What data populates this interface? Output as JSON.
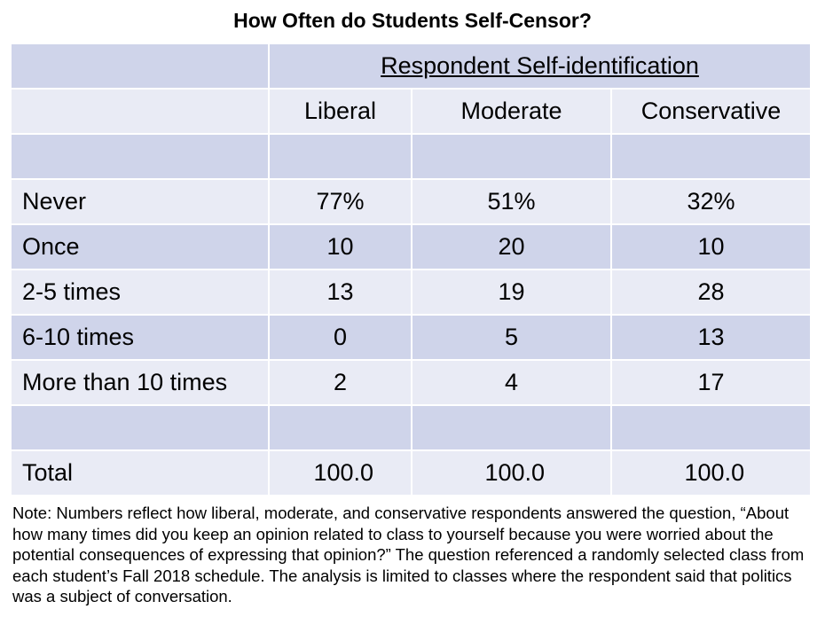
{
  "title": "How Often do Students Self-Censor?",
  "table": {
    "group_header": "Respondent Self-identification",
    "columns": [
      "Liberal",
      "Moderate",
      "Conservative"
    ],
    "rows": [
      {
        "label": "Never",
        "values": [
          "77%",
          "51%",
          "32%"
        ]
      },
      {
        "label": "Once",
        "values": [
          "10",
          "20",
          "10"
        ]
      },
      {
        "label": "2-5 times",
        "values": [
          "13",
          "19",
          "28"
        ]
      },
      {
        "label": "6-10 times",
        "values": [
          "0",
          "5",
          "13"
        ]
      },
      {
        "label": "More than 10 times",
        "values": [
          "2",
          "4",
          "17"
        ]
      }
    ],
    "total": {
      "label": "Total",
      "values": [
        "100.0",
        "100.0",
        "100.0"
      ]
    }
  },
  "note": "Note: Numbers reflect how liberal, moderate, and conservative respondents answered the question, “About how many times did you keep an opinion related to class to yourself because you were worried about the potential consequences of expressing that opinion?” The question referenced a randomly selected class from each student’s Fall 2018 schedule. The analysis is limited to classes where the respondent said that politics was a subject of conversation.",
  "colors": {
    "row_dark": "#cfd4ea",
    "row_light": "#e9ebf5",
    "text": "#000000"
  }
}
